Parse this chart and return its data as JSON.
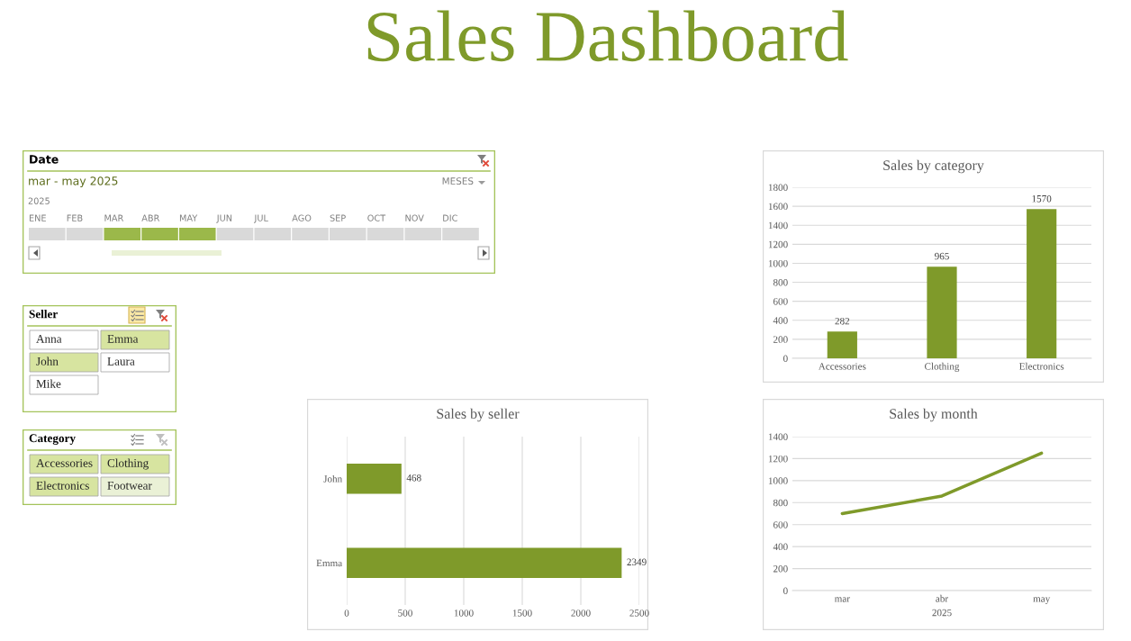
{
  "chart_data": [
    {
      "type": "other",
      "title": "Sales Dashboard",
      "color": "#7f9a2a"
    },
    {
      "type": "other",
      "title": "Date",
      "annotations": [
        "mar - may 2025",
        "MESES",
        "2025"
      ],
      "categories": [
        "ENE",
        "FEB",
        "MAR",
        "ABR",
        "MAY",
        "JUN",
        "JUL",
        "AGO",
        "SEP",
        "OCT",
        "NOV",
        "DIC"
      ],
      "colors": [
        "#d9d9d9",
        "#d9d9d9",
        "#9bb84a",
        "#9bb84a",
        "#9bb84a",
        "#d9d9d9",
        "#d9d9d9",
        "#d9d9d9",
        "#d9d9d9",
        "#d9d9d9",
        "#d9d9d9",
        "#d9d9d9"
      ]
    },
    {
      "type": "other",
      "title": "Seller",
      "categories": [
        "Anna",
        "Emma",
        "John",
        "Laura",
        "Mike"
      ],
      "colors": [
        "#ffffff",
        "#d7e4a0",
        "#d7e4a0",
        "#ffffff",
        "#ffffff"
      ]
    },
    {
      "type": "other",
      "title": "Category",
      "categories": [
        "Accessories",
        "Clothing",
        "Electronics",
        "Footwear"
      ],
      "colors": [
        "#d7e4a0",
        "#d7e4a0",
        "#d7e4a0",
        "#eaf1d6"
      ]
    },
    {
      "type": "bar",
      "title": "Sales by category",
      "categories": [
        "Accessories",
        "Clothing",
        "Electronics"
      ],
      "values": [
        282,
        965,
        1570
      ],
      "color": "#7f9a2a",
      "ylim": [
        0,
        1800
      ],
      "yticks": [
        0,
        200,
        400,
        600,
        800,
        1000,
        1200,
        1400,
        1600,
        1800
      ],
      "grid": "y",
      "data_labels": true
    },
    {
      "type": "bar",
      "orientation": "horizontal",
      "title": "Sales by seller",
      "categories": [
        "John",
        "Emma"
      ],
      "values": [
        468,
        2349
      ],
      "color": "#7f9a2a",
      "xlim": [
        0,
        2500
      ],
      "xticks": [
        0,
        500,
        1000,
        1500,
        2000,
        2500
      ],
      "grid": "x",
      "data_labels": true
    },
    {
      "type": "line",
      "title": "Sales by month",
      "categories": [
        "mar",
        "abr",
        "may"
      ],
      "xlabel": "2025",
      "values": [
        700,
        860,
        1250
      ],
      "color": "#7f9a2a",
      "ylim": [
        0,
        1400
      ],
      "yticks": [
        0,
        200,
        400,
        600,
        800,
        1000,
        1200,
        1400
      ],
      "grid": "y",
      "marker": "none",
      "line_style": "solid"
    }
  ]
}
